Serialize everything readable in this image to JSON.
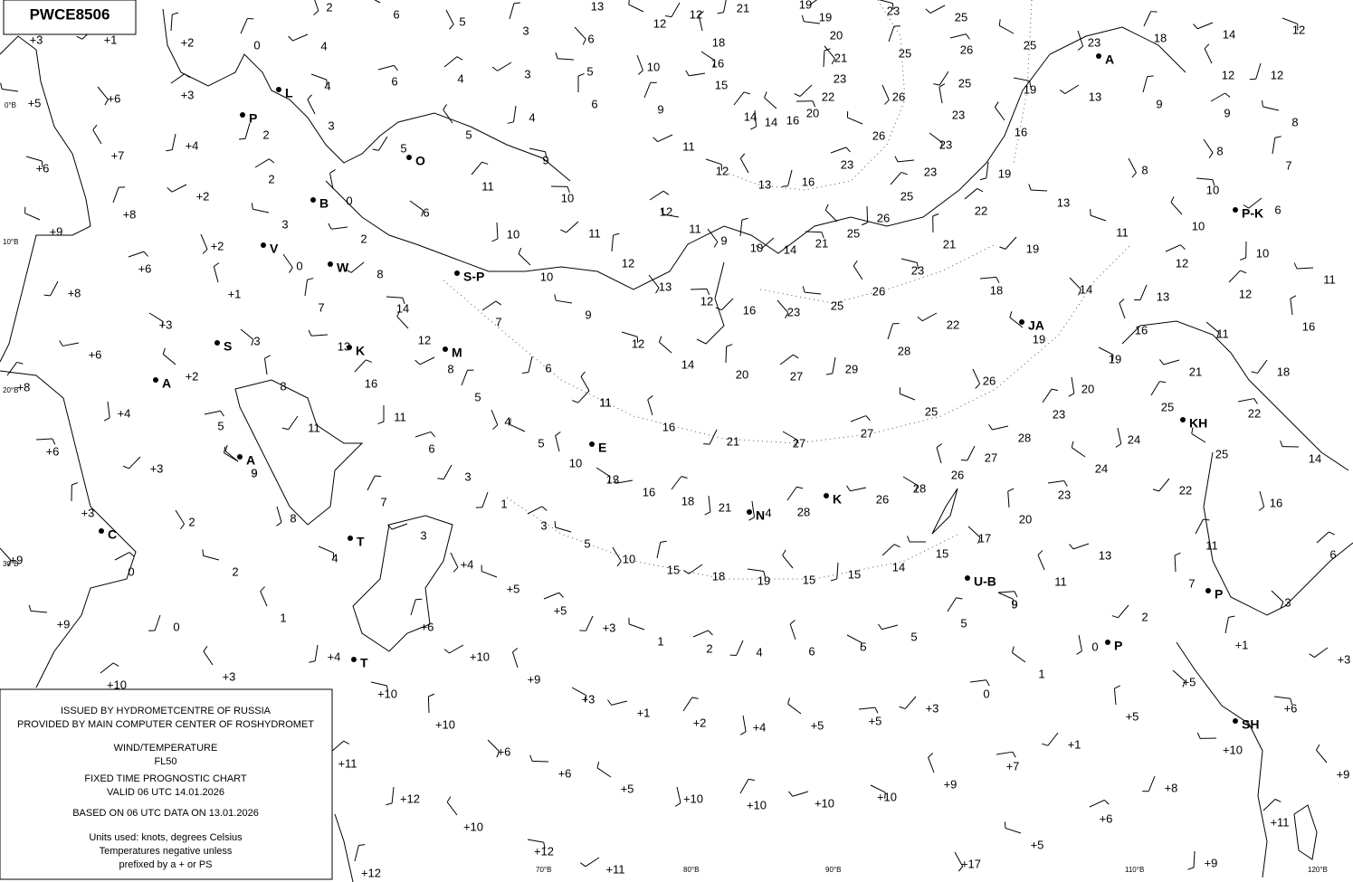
{
  "header": {
    "code": "PWCE8506"
  },
  "info": [
    "ISSUED BY HYDROMETCENTRE OF RUSSIA",
    "PROVIDED BY MAIN COMPUTER CENTER OF ROSHYDROMET",
    "WIND/TEMPERATURE",
    "FL50",
    "FIXED TIME PROGNOSTIC CHART",
    "VALID 06 UTC 14.01.2026",
    "BASED ON 06 UTC DATA ON  13.01.2026",
    "Units used: knots, degrees Celsius",
    "Temperatures negative unless",
    "prefixed by a + or PS"
  ],
  "graticule_labels": [
    "0°B",
    "10°B",
    "20°B",
    "30°B",
    "70°B",
    "80°B",
    "90°B",
    "110°B",
    "120°B"
  ],
  "stations": [
    "L",
    "P",
    "O",
    "B",
    "V",
    "W",
    "S-P",
    "S",
    "K",
    "M",
    "A",
    "A",
    "E",
    "C",
    "T",
    "T",
    "N",
    "K",
    "U-B",
    "P",
    "SH",
    "KH",
    "JA",
    "P-K",
    "A",
    "P"
  ],
  "temperatures": [
    "+3",
    "+1",
    "+2",
    "+6",
    "+5",
    "+3",
    "+4",
    "+7",
    "+6",
    "+2",
    "+8",
    "+2",
    "+9",
    "+6",
    "+8",
    "+1",
    "+3",
    "+6",
    "+8",
    "+4",
    "+2",
    "+6",
    "+3",
    "+3",
    "+9",
    "+9",
    "+10",
    "+4",
    "+3",
    "+10",
    "+10",
    "+6",
    "+4",
    "+5",
    "+5",
    "+3",
    "+9",
    "+3",
    "+1",
    "+2",
    "+4",
    "+5",
    "+5",
    "+3",
    "+10",
    "+6",
    "+6",
    "+11",
    "+12",
    "+10",
    "+12",
    "+11",
    "+12",
    "+17",
    "+5",
    "+6",
    "+8",
    "+9",
    "+10",
    "+10",
    "+10",
    "+10",
    "+5",
    "+7",
    "+1",
    "+5",
    "+5",
    "+10",
    "+11",
    "+9",
    "+9",
    "+6",
    "+3",
    "+1",
    "2",
    "2",
    "0",
    "0",
    "1",
    "4",
    "3",
    "7",
    "8",
    "9",
    "5",
    "11",
    "8",
    "3",
    "13",
    "16",
    "11",
    "12",
    "14",
    "8",
    "7",
    "0",
    "3",
    "2",
    "2",
    "3",
    "4",
    "4",
    "0",
    "2",
    "6",
    "6",
    "5",
    "0",
    "6",
    "2",
    "11",
    "10",
    "10",
    "10",
    "11",
    "12",
    "13",
    "9",
    "7",
    "6",
    "11",
    "12",
    "8",
    "5",
    "4",
    "5",
    "6",
    "3",
    "10",
    "13",
    "16",
    "18",
    "21",
    "14",
    "12",
    "16",
    "20",
    "23",
    "25",
    "27",
    "29",
    "26",
    "23",
    "22",
    "28",
    "26",
    "25",
    "27",
    "21",
    "16",
    "27",
    "28",
    "23",
    "20",
    "19",
    "18",
    "19",
    "21",
    "14",
    "13",
    "22",
    "19",
    "16",
    "19",
    "13",
    "9",
    "8",
    "11",
    "12",
    "13",
    "16",
    "19",
    "21",
    "25",
    "24",
    "24",
    "23",
    "22",
    "20",
    "17",
    "15",
    "14",
    "15",
    "15",
    "19",
    "18",
    "15",
    "10",
    "5",
    "3",
    "1",
    "11",
    "9",
    "13",
    "11",
    "16",
    "25",
    "22",
    "18",
    "16",
    "11",
    "11",
    "12",
    "10",
    "10",
    "10",
    "6",
    "7",
    "8",
    "8",
    "9",
    "12",
    "12",
    "12",
    "14",
    "18",
    "23",
    "25",
    "26",
    "25",
    "23",
    "23",
    "23",
    "25",
    "26",
    "25",
    "21",
    "14",
    "10",
    "9",
    "11",
    "12",
    "16",
    "13",
    "12",
    "11",
    "9",
    "10",
    "12",
    "13",
    "12",
    "18",
    "16",
    "15",
    "14",
    "14",
    "16",
    "20",
    "22",
    "23",
    "21",
    "20",
    "19",
    "21",
    "19",
    "23",
    "25",
    "25",
    "26",
    "26",
    "23",
    "27",
    "26",
    "28",
    "26",
    "28",
    "4",
    "9",
    "9",
    "11",
    "6",
    "6",
    "5",
    "4",
    "4",
    "5",
    "9",
    "3",
    "3",
    "5",
    "1",
    "2",
    "4",
    "6",
    "5",
    "5",
    "5",
    "0",
    "1",
    "0",
    "2",
    "7",
    "3",
    "14",
    "6"
  ]
}
